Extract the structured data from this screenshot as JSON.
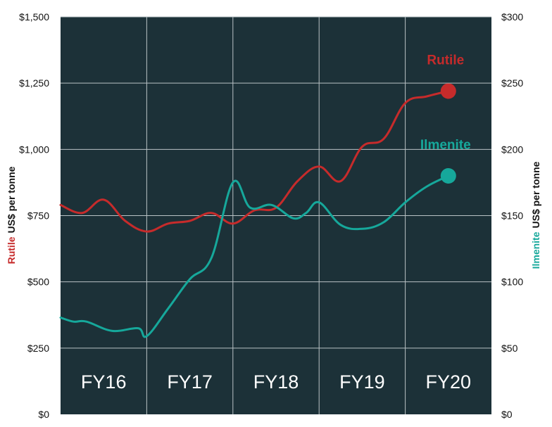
{
  "chart_data": {
    "type": "line",
    "plot_background": "#1c3138",
    "grid": true,
    "left_axis": {
      "label_series": "Rutile",
      "label_unit": "US$ per tonne",
      "ylim": [
        0,
        1500
      ],
      "ticks": [
        0,
        250,
        500,
        750,
        1000,
        1250,
        1500
      ],
      "tick_labels": [
        "$0",
        "$250",
        "$500",
        "$750",
        "$1,000",
        "$1,250",
        "$1,500"
      ]
    },
    "right_axis": {
      "label_series": "Ilmenite",
      "label_unit": "US$ per tonne",
      "ylim": [
        0,
        300
      ],
      "ticks": [
        0,
        50,
        100,
        150,
        200,
        250,
        300
      ],
      "tick_labels": [
        "$0",
        "$50",
        "$100",
        "$150",
        "$200",
        "$250",
        "$300"
      ]
    },
    "categories": [
      "FY16",
      "FY17",
      "FY18",
      "FY19",
      "FY20"
    ],
    "xlim": [
      0,
      5
    ],
    "series": [
      {
        "name": "Rutile",
        "axis": "left",
        "color": "#c62b2b",
        "end_marker": true,
        "x": [
          0,
          0.25,
          0.5,
          0.75,
          1.0,
          1.25,
          1.5,
          1.75,
          2.0,
          2.25,
          2.5,
          2.75,
          3.0,
          3.25,
          3.5,
          3.75,
          4.0,
          4.25,
          4.5
        ],
        "values": [
          790,
          760,
          810,
          730,
          690,
          720,
          730,
          760,
          720,
          770,
          780,
          880,
          935,
          880,
          1010,
          1040,
          1175,
          1200,
          1220
        ]
      },
      {
        "name": "Ilmenite",
        "axis": "right",
        "color": "#16a89b",
        "end_marker": true,
        "x": [
          0,
          0.15,
          0.3,
          0.6,
          0.9,
          1.0,
          1.25,
          1.5,
          1.75,
          2.0,
          2.2,
          2.45,
          2.7,
          2.85,
          3.0,
          3.25,
          3.5,
          3.75,
          4.0,
          4.25,
          4.5
        ],
        "values": [
          73,
          70,
          70,
          63,
          65,
          59,
          80,
          102,
          118,
          175,
          156,
          158,
          148,
          152,
          160,
          143,
          140,
          145,
          160,
          172,
          180
        ]
      }
    ]
  }
}
